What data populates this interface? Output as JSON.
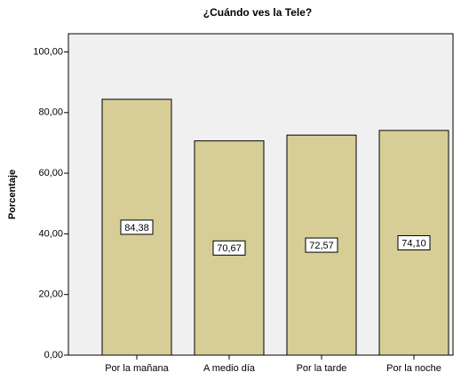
{
  "chart_data": {
    "type": "bar",
    "title": "¿Cuándo ves la Tele?",
    "y_label": "Porcentaje",
    "categories": [
      "Por la mañana",
      "A medio día",
      "Por la tarde",
      "Por la noche"
    ],
    "values": [
      84.38,
      70.67,
      72.57,
      74.1
    ],
    "value_labels": [
      "84,38",
      "70,67",
      "72,57",
      "74,10"
    ],
    "color": "#d6ce96",
    "ylim": [
      0,
      106
    ],
    "yticks": [
      {
        "value": 0,
        "label": "0,00"
      },
      {
        "value": 20,
        "label": "20,00"
      },
      {
        "value": 40,
        "label": "40,00"
      },
      {
        "value": 60,
        "label": "60,00"
      },
      {
        "value": 80,
        "label": "80,00"
      },
      {
        "value": 100,
        "label": "100,00"
      }
    ],
    "grid": false
  }
}
